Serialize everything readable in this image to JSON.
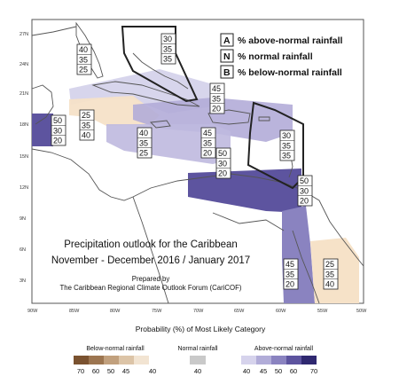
{
  "map": {
    "lat_labels": [
      "27N",
      "24N",
      "21N",
      "18N",
      "15N",
      "12N",
      "9N",
      "6N",
      "3N"
    ],
    "lon_labels": [
      "90W",
      "85W",
      "80W",
      "75W",
      "70W",
      "65W",
      "60W",
      "55W",
      "50W"
    ]
  },
  "key": {
    "items": [
      {
        "letter": "A",
        "text": "% above-normal rainfall"
      },
      {
        "letter": "N",
        "text": "% normal rainfall"
      },
      {
        "letter": "B",
        "text": "% below-normal rainfall"
      }
    ]
  },
  "title": {
    "line1": "Precipitation outlook for the Caribbean",
    "line2": "November - December 2016 / January 2017",
    "prepared_line1": "Prepared by",
    "prepared_line2": "The Caribbean Regional Climate Outlook Forum (CariCOF)"
  },
  "forecast_boxes": [
    {
      "region": "bahamas-north",
      "values": [
        "30",
        "35",
        "35"
      ]
    },
    {
      "region": "bahamas-west-cuba",
      "values": [
        "40",
        "35",
        "25"
      ]
    },
    {
      "region": "central-america-west",
      "values": [
        "50",
        "30",
        "20"
      ]
    },
    {
      "region": "cayman-jamaica-west",
      "values": [
        "25",
        "35",
        "40"
      ]
    },
    {
      "region": "jamaica",
      "values": [
        "40",
        "35",
        "25"
      ]
    },
    {
      "region": "hispaniola-north",
      "values": [
        "45",
        "35",
        "20"
      ]
    },
    {
      "region": "hispaniola-south",
      "values": [
        "45",
        "35",
        "20"
      ]
    },
    {
      "region": "caribbean-central",
      "values": [
        "50",
        "30",
        "20"
      ]
    },
    {
      "region": "eastern-antilles",
      "values": [
        "30",
        "35",
        "35"
      ]
    },
    {
      "region": "southern-caribbean",
      "values": [
        "50",
        "30",
        "20"
      ]
    },
    {
      "region": "guyana",
      "values": [
        "45",
        "35",
        "20"
      ]
    },
    {
      "region": "suriname-french-guiana",
      "values": [
        "25",
        "35",
        "40"
      ]
    }
  ],
  "legend": {
    "title": "Probability (%) of Most Likely Category",
    "below": {
      "label": "Below-normal rainfall",
      "colors": [
        "#7a5230",
        "#9c7550",
        "#c1a07d",
        "#dcc4a7",
        "#f2e4d2"
      ],
      "ticks": [
        "70",
        "60",
        "50",
        "45",
        "40"
      ]
    },
    "normal": {
      "label": "Normal rainfall",
      "color": "#c9c9c9",
      "tick": "40"
    },
    "above": {
      "label": "Above-normal rainfall",
      "colors": [
        "#d6d3ec",
        "#b1acd8",
        "#8a83c0",
        "#5d549f",
        "#2f2870"
      ],
      "ticks": [
        "40",
        "45",
        "50",
        "60",
        "70"
      ]
    }
  }
}
